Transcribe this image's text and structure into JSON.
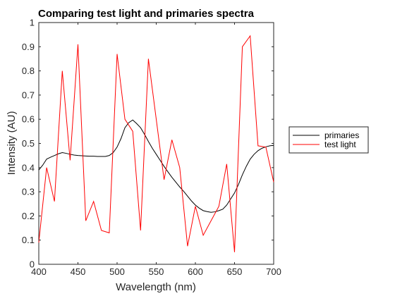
{
  "chart_data": {
    "type": "line",
    "title": "Comparing test light and primaries spectra",
    "xlabel": "Wavelength (nm)",
    "ylabel": "Intensity (AU)",
    "xlim": [
      400,
      700
    ],
    "ylim": [
      0,
      1
    ],
    "xticks": [
      400,
      450,
      500,
      550,
      600,
      650,
      700
    ],
    "xtick_labels": [
      "400",
      "450",
      "500",
      "550",
      "600",
      "650",
      "700"
    ],
    "yticks": [
      0,
      0.1,
      0.2,
      0.3,
      0.4,
      0.5,
      0.6,
      0.7,
      0.8,
      0.9,
      1
    ],
    "ytick_labels": [
      "0",
      "0.1",
      "0.2",
      "0.3",
      "0.4",
      "0.5",
      "0.6",
      "0.7",
      "0.8",
      "0.9",
      "1"
    ],
    "grid": false,
    "legend_position": "outside-right",
    "series": [
      {
        "name": "primaries",
        "color": "#000000",
        "x": [
          400,
          405,
          410,
          415,
          420,
          425,
          430,
          435,
          440,
          445,
          450,
          455,
          460,
          465,
          470,
          475,
          480,
          485,
          490,
          495,
          500,
          505,
          510,
          515,
          520,
          525,
          530,
          535,
          540,
          545,
          550,
          555,
          560,
          565,
          570,
          575,
          580,
          585,
          590,
          595,
          600,
          605,
          610,
          615,
          620,
          625,
          630,
          635,
          640,
          645,
          650,
          655,
          660,
          665,
          670,
          675,
          680,
          685,
          690,
          695,
          700
        ],
        "y": [
          0.39,
          0.41,
          0.435,
          0.443,
          0.45,
          0.457,
          0.462,
          0.459,
          0.455,
          0.452,
          0.45,
          0.449,
          0.448,
          0.447,
          0.447,
          0.446,
          0.446,
          0.446,
          0.45,
          0.462,
          0.485,
          0.52,
          0.565,
          0.586,
          0.597,
          0.582,
          0.565,
          0.538,
          0.508,
          0.48,
          0.455,
          0.43,
          0.405,
          0.382,
          0.36,
          0.34,
          0.32,
          0.302,
          0.282,
          0.262,
          0.245,
          0.232,
          0.222,
          0.218,
          0.215,
          0.217,
          0.222,
          0.228,
          0.245,
          0.27,
          0.295,
          0.33,
          0.37,
          0.405,
          0.435,
          0.455,
          0.47,
          0.48,
          0.486,
          0.49,
          0.492
        ]
      },
      {
        "name": "test light",
        "color": "#ff0000",
        "x": [
          400,
          410,
          420,
          430,
          440,
          450,
          460,
          470,
          480,
          490,
          500,
          510,
          520,
          530,
          540,
          550,
          560,
          570,
          580,
          590,
          600,
          610,
          620,
          630,
          640,
          650,
          660,
          670,
          680,
          690,
          700
        ],
        "y": [
          0.09,
          0.4,
          0.26,
          0.8,
          0.43,
          0.91,
          0.18,
          0.26,
          0.14,
          0.13,
          0.87,
          0.6,
          0.55,
          0.14,
          0.85,
          0.6,
          0.35,
          0.515,
          0.4,
          0.075,
          0.24,
          0.12,
          0.18,
          0.24,
          0.415,
          0.05,
          0.9,
          0.945,
          0.49,
          0.485,
          0.34
        ]
      }
    ]
  }
}
